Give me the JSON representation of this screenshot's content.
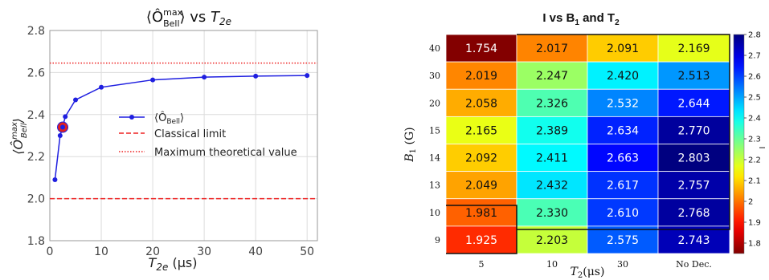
{
  "chart_data": [
    {
      "type": "line",
      "title": "⟨Ô",
      "title_sup": "max",
      "title_sub": "Bell",
      "title_rest": "⟩ vs ",
      "title_var": "T",
      "title_var_sub": "2e",
      "xlabel": "T",
      "xlabel_sub": "2e",
      "xlabel_unit": " (μs)",
      "ylabel": "⟨Ô",
      "ylabel_sup": "max",
      "ylabel_sub": "Bell",
      "ylabel_end": "⟩",
      "xlim": [
        0,
        52
      ],
      "ylim": [
        1.8,
        2.8
      ],
      "xticks": [
        "0",
        "10",
        "20",
        "30",
        "40",
        "50"
      ],
      "yticks": [
        "1.8",
        "2.0",
        "2.2",
        "2.4",
        "2.6",
        "2.8"
      ],
      "grid": true,
      "series": [
        {
          "name": "⟨Ô",
          "name_sub": "Bell",
          "name_end": "⟩",
          "color": "#1f1fe0",
          "x": [
            1,
            2,
            2.5,
            3,
            5,
            10,
            20,
            30,
            40,
            50
          ],
          "y": [
            2.09,
            2.3,
            2.34,
            2.39,
            2.47,
            2.53,
            2.565,
            2.578,
            2.583,
            2.586
          ]
        }
      ],
      "highlight_point": {
        "x": 2.5,
        "y": 2.34,
        "color": "#e02020"
      },
      "classical_limit": {
        "label": "Classical limit",
        "value": 2.0,
        "color": "#ee2222"
      },
      "max_theoretical": {
        "label": "Maximum theoretical value",
        "value": 2.645,
        "color": "#ee2222"
      },
      "legend_position": "center-right"
    },
    {
      "type": "heatmap",
      "title": "I vs B",
      "title_sub1": "1",
      "title_mid": " and T",
      "title_sub2": "2",
      "ylabel": "B",
      "ylabel_sub": "1",
      "ylabel_unit": " (G)",
      "xlabel": "T",
      "xlabel_sub": "2",
      "xlabel_unit": "(μs)",
      "x_categories": [
        "5",
        "10",
        "30",
        "No Dec."
      ],
      "y_categories": [
        "40",
        "30",
        "20",
        "15",
        "14",
        "13",
        "10",
        "9"
      ],
      "values": [
        [
          1.754,
          2.017,
          2.091,
          2.169
        ],
        [
          2.019,
          2.247,
          2.42,
          2.513
        ],
        [
          2.058,
          2.326,
          2.532,
          2.644
        ],
        [
          2.165,
          2.389,
          2.634,
          2.77
        ],
        [
          2.092,
          2.411,
          2.663,
          2.803
        ],
        [
          2.049,
          2.432,
          2.617,
          2.757
        ],
        [
          1.981,
          2.33,
          2.61,
          2.768
        ],
        [
          1.925,
          2.203,
          2.575,
          2.743
        ]
      ],
      "value_labels": [
        [
          "1.754",
          "2.017",
          "2.091",
          "2.169"
        ],
        [
          "2.019",
          "2.247",
          "2.420",
          "2.513"
        ],
        [
          "2.058",
          "2.326",
          "2.532",
          "2.644"
        ],
        [
          "2.165",
          "2.389",
          "2.634",
          "2.770"
        ],
        [
          "2.092",
          "2.411",
          "2.663",
          "2.803"
        ],
        [
          "2.049",
          "2.432",
          "2.617",
          "2.757"
        ],
        [
          "1.981",
          "2.330",
          "2.610",
          "2.768"
        ],
        [
          "1.925",
          "2.203",
          "2.575",
          "2.743"
        ]
      ],
      "colormap": "jet_reversed",
      "colorbar": {
        "label": "I",
        "range": [
          1.75,
          2.8
        ],
        "ticks": [
          "2.8",
          "2.7",
          "2.6",
          "2.5",
          "2.4",
          "2.3",
          "2.2",
          "2.1",
          "2",
          "1.9",
          "1.8"
        ],
        "tick_values": [
          2.8,
          2.7,
          2.6,
          2.5,
          2.4,
          2.3,
          2.2,
          2.1,
          2.0,
          1.9,
          1.8
        ]
      }
    }
  ]
}
